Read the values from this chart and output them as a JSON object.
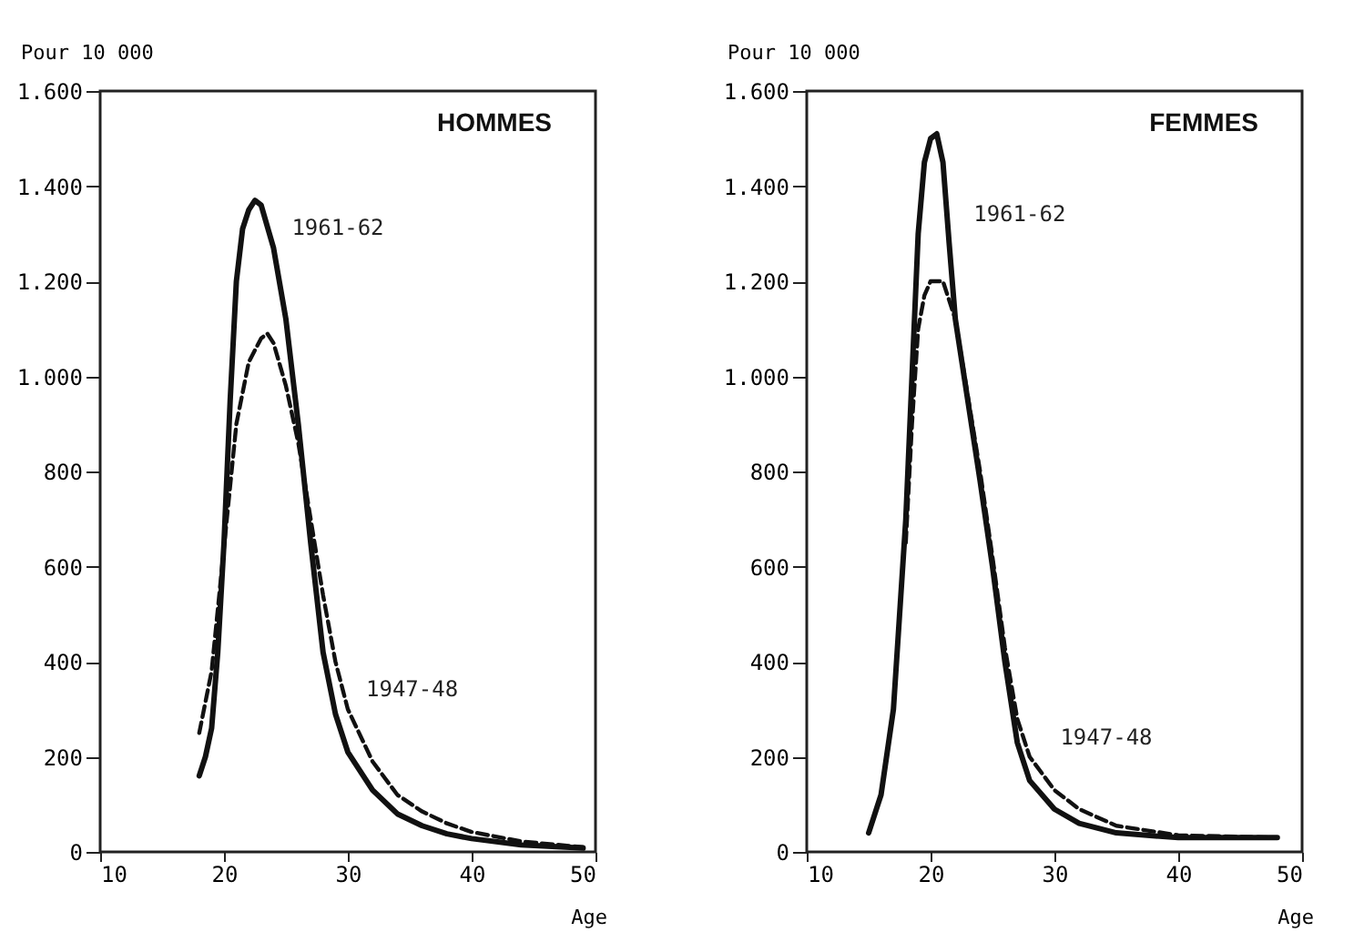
{
  "chart_data": [
    {
      "type": "line",
      "title": "HOMMES",
      "xlabel": "Age",
      "ylabel": "Pour 10 000",
      "xlim": [
        10,
        50
      ],
      "xticks": [
        10,
        20,
        30,
        40,
        50
      ],
      "ylim": [
        0,
        1600
      ],
      "yticks": [
        0,
        200,
        400,
        600,
        800,
        {
          "value": 1000,
          "label": "1.000"
        },
        {
          "value": 1200,
          "label": "1.200"
        },
        {
          "value": 1400,
          "label": "1.400"
        },
        {
          "value": 1600,
          "label": "1.600"
        }
      ],
      "marker": "none",
      "series": [
        {
          "color": "#111111",
          "line_style": "solid",
          "x": [
            18,
            18.5,
            19,
            19.5,
            20,
            20.5,
            21,
            21.5,
            22,
            22.5,
            23,
            24,
            25,
            26,
            27,
            28,
            29,
            30,
            32,
            34,
            36,
            38,
            40,
            44,
            49
          ],
          "values": [
            160,
            200,
            260,
            420,
            650,
            950,
            1200,
            1310,
            1350,
            1370,
            1360,
            1270,
            1120,
            900,
            650,
            420,
            290,
            210,
            130,
            80,
            55,
            38,
            28,
            15,
            8
          ]
        },
        {
          "color": "#111111",
          "line_style": "dashed",
          "x": [
            18,
            19,
            20,
            21,
            22,
            23,
            23.5,
            24,
            25,
            26,
            27,
            28,
            29,
            30,
            32,
            34,
            36,
            38,
            40,
            44,
            49
          ],
          "values": [
            250,
            380,
            640,
            900,
            1030,
            1080,
            1090,
            1070,
            980,
            860,
            700,
            540,
            400,
            300,
            190,
            120,
            85,
            60,
            42,
            22,
            10
          ]
        }
      ],
      "annotations": [
        {
          "text": "1961-62",
          "x": 24,
          "y": 1270
        },
        {
          "text": "1947-48",
          "x": 30,
          "y": 300
        }
      ]
    },
    {
      "type": "line",
      "title": "FEMMES",
      "xlabel": "Age",
      "ylabel": "Pour 10 000",
      "xlim": [
        10,
        50
      ],
      "xticks": [
        10,
        20,
        30,
        40,
        50
      ],
      "ylim": [
        0,
        1600
      ],
      "yticks": [
        0,
        200,
        400,
        600,
        800,
        {
          "value": 1000,
          "label": "1.000"
        },
        {
          "value": 1200,
          "label": "1.200"
        },
        {
          "value": 1400,
          "label": "1.400"
        },
        {
          "value": 1600,
          "label": "1.600"
        }
      ],
      "marker": "none",
      "series": [
        {
          "color": "#111111",
          "line_style": "solid",
          "x": [
            15,
            16,
            17,
            18,
            18.5,
            19,
            19.5,
            20,
            20.5,
            21,
            21.5,
            22,
            23,
            24,
            25,
            26,
            27,
            28,
            30,
            32,
            35,
            40,
            48
          ],
          "values": [
            40,
            120,
            300,
            700,
            1000,
            1300,
            1450,
            1500,
            1510,
            1450,
            1280,
            1120,
            950,
            780,
            600,
            400,
            230,
            150,
            90,
            60,
            40,
            30,
            30
          ]
        },
        {
          "color": "#111111",
          "line_style": "dashed",
          "x": [
            18,
            18.5,
            19,
            19.5,
            20,
            21,
            22,
            23,
            24,
            25,
            26,
            27,
            28,
            30,
            32,
            35,
            40,
            48
          ],
          "values": [
            650,
            900,
            1100,
            1170,
            1200,
            1200,
            1120,
            960,
            800,
            620,
            430,
            280,
            200,
            130,
            90,
            55,
            35,
            30
          ]
        }
      ],
      "annotations": [
        {
          "text": "1961-62",
          "x": 22,
          "y": 1300
        },
        {
          "text": "1947-48",
          "x": 29,
          "y": 200
        }
      ]
    }
  ]
}
